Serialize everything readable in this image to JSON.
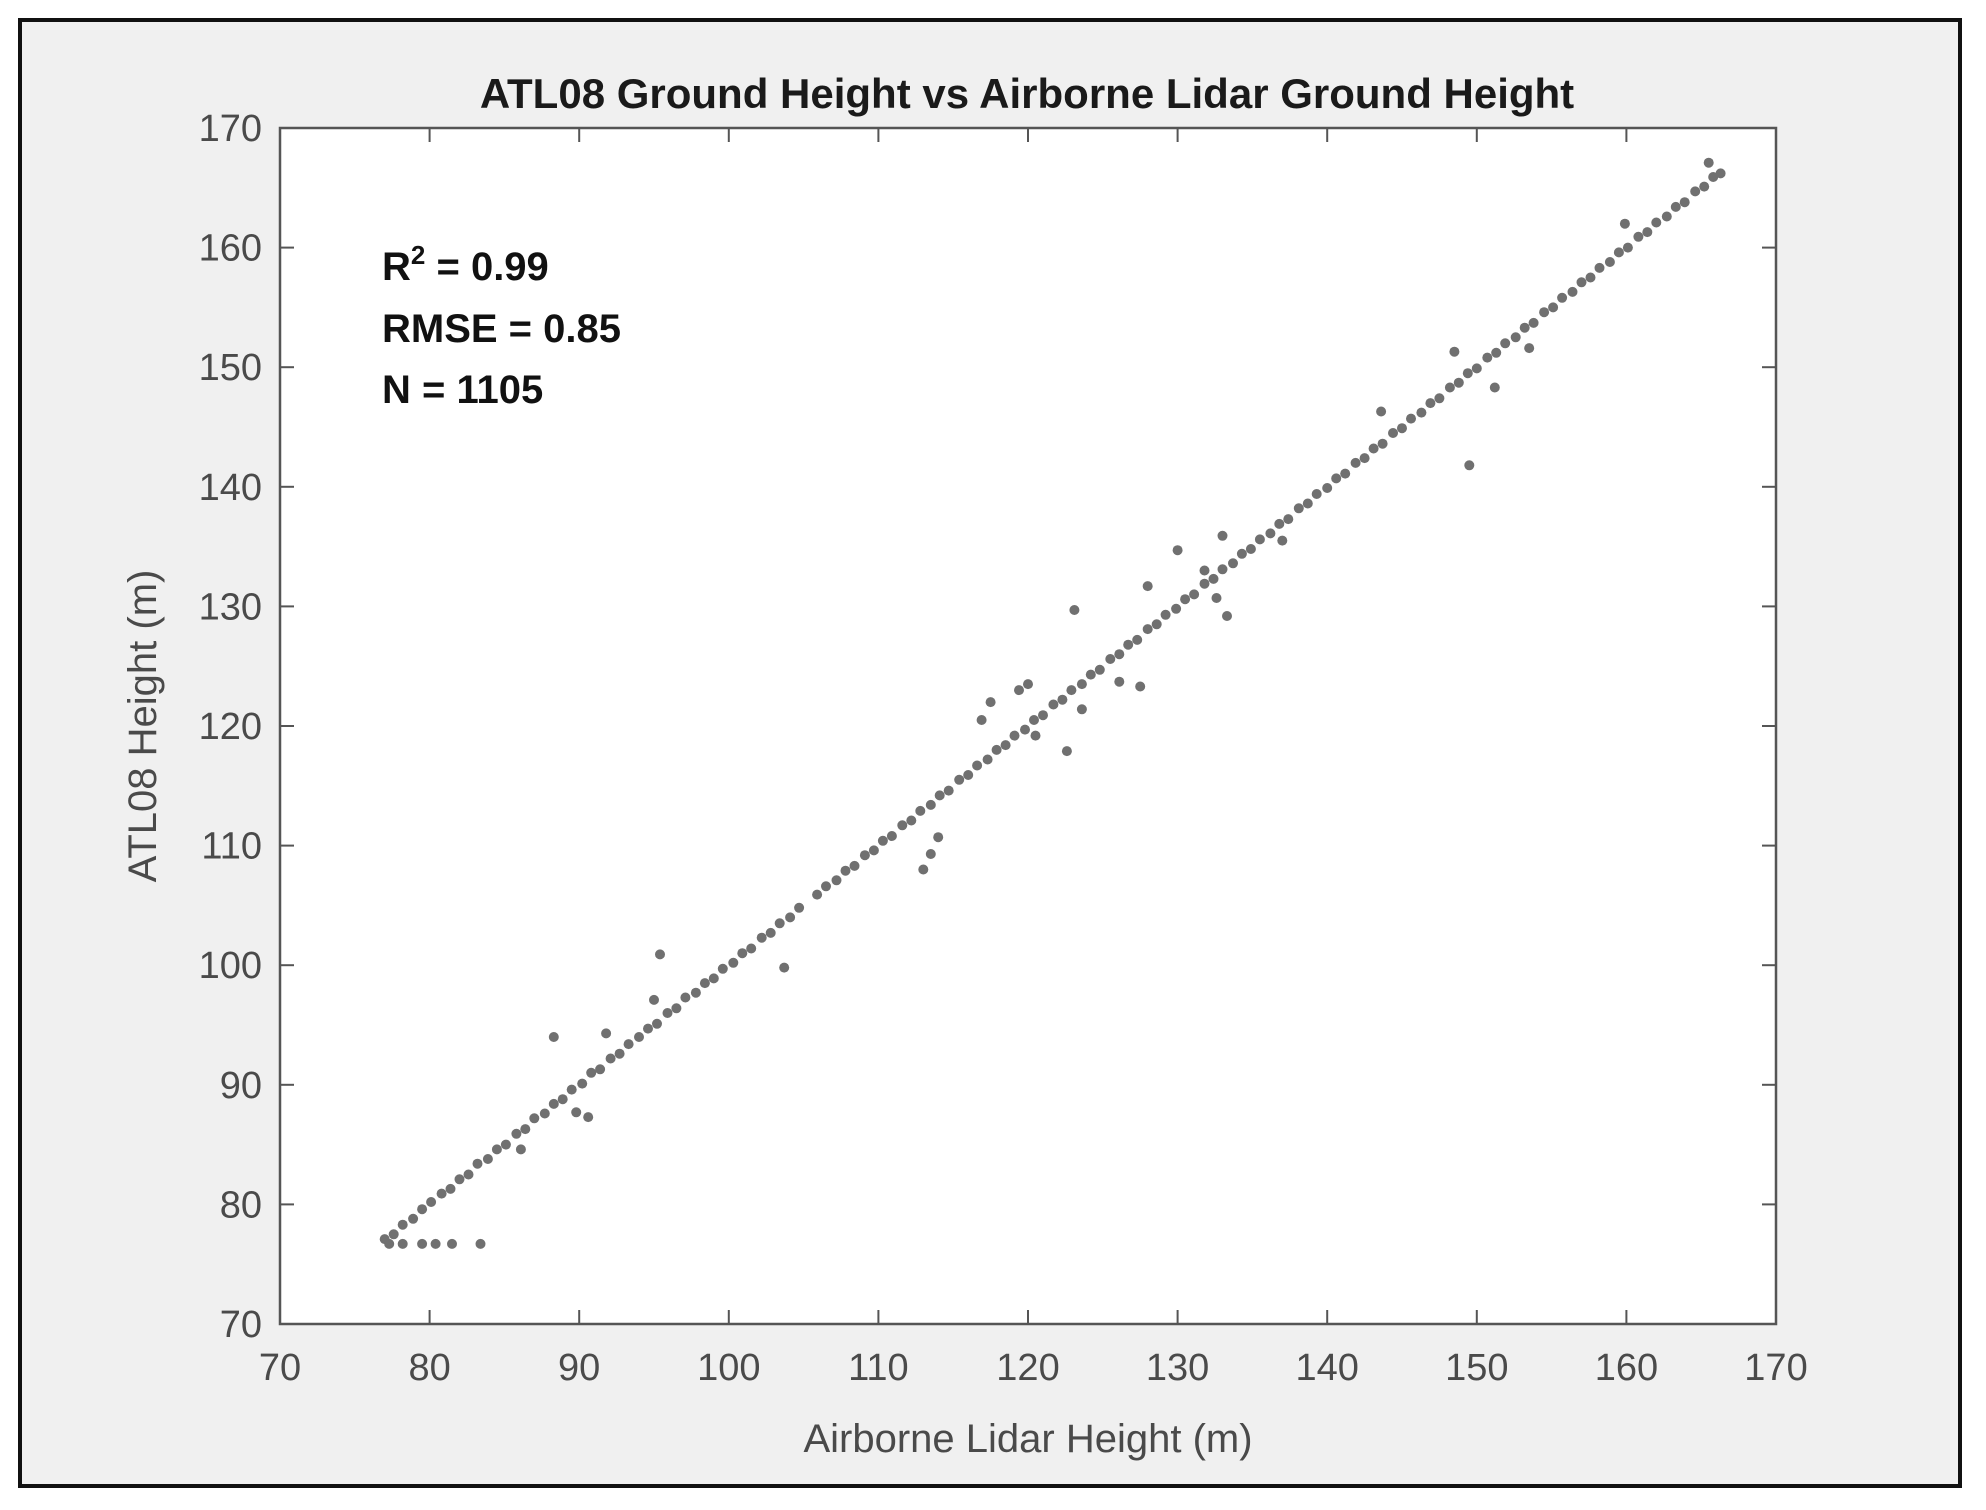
{
  "chart_data": {
    "type": "scatter",
    "title": "ATL08 Ground Height vs Airborne Lidar Ground Height",
    "xlabel": "Airborne Lidar Height (m)",
    "ylabel": "ATL08 Height (m)",
    "xlim": [
      70,
      170
    ],
    "ylim": [
      70,
      170
    ],
    "xticks": [
      "70",
      "80",
      "90",
      "100",
      "110",
      "120",
      "130",
      "140",
      "150",
      "160",
      "170"
    ],
    "yticks": [
      "70",
      "80",
      "90",
      "100",
      "110",
      "120",
      "130",
      "140",
      "150",
      "160",
      "170"
    ],
    "grid": false,
    "marker_color": "#707070",
    "stats": {
      "r2_prefix": "R",
      "r2_exp": "2",
      "r2_value": " = 0.99",
      "rmse": "RMSE = 0.85",
      "n": "N = 1105"
    },
    "points": [
      [
        77.0,
        77.1
      ],
      [
        77.6,
        77.5
      ],
      [
        78.2,
        78.3
      ],
      [
        78.9,
        78.8
      ],
      [
        79.5,
        79.6
      ],
      [
        80.1,
        80.2
      ],
      [
        80.8,
        80.9
      ],
      [
        81.4,
        81.3
      ],
      [
        82.0,
        82.1
      ],
      [
        82.6,
        82.5
      ],
      [
        83.2,
        83.4
      ],
      [
        83.9,
        83.8
      ],
      [
        84.5,
        84.6
      ],
      [
        85.1,
        85.0
      ],
      [
        85.8,
        85.9
      ],
      [
        86.4,
        86.3
      ],
      [
        87.0,
        87.2
      ],
      [
        87.7,
        87.6
      ],
      [
        88.3,
        88.4
      ],
      [
        88.9,
        88.8
      ],
      [
        89.5,
        89.6
      ],
      [
        90.2,
        90.1
      ],
      [
        90.8,
        91.0
      ],
      [
        91.4,
        91.3
      ],
      [
        92.1,
        92.2
      ],
      [
        92.7,
        92.6
      ],
      [
        93.3,
        93.4
      ],
      [
        94.0,
        94.0
      ],
      [
        94.6,
        94.7
      ],
      [
        95.2,
        95.1
      ],
      [
        95.9,
        96.0
      ],
      [
        96.5,
        96.4
      ],
      [
        97.1,
        97.3
      ],
      [
        97.8,
        97.7
      ],
      [
        98.4,
        98.5
      ],
      [
        99.0,
        98.9
      ],
      [
        99.6,
        99.7
      ],
      [
        100.3,
        100.2
      ],
      [
        100.9,
        101.0
      ],
      [
        101.5,
        101.4
      ],
      [
        102.2,
        102.3
      ],
      [
        102.8,
        102.7
      ],
      [
        103.4,
        103.5
      ],
      [
        104.1,
        104.0
      ],
      [
        104.7,
        104.8
      ],
      [
        105.9,
        105.9
      ],
      [
        106.5,
        106.6
      ],
      [
        107.2,
        107.1
      ],
      [
        107.8,
        107.9
      ],
      [
        108.4,
        108.3
      ],
      [
        109.1,
        109.2
      ],
      [
        109.7,
        109.6
      ],
      [
        110.3,
        110.4
      ],
      [
        110.9,
        110.8
      ],
      [
        111.6,
        111.7
      ],
      [
        112.2,
        112.1
      ],
      [
        112.8,
        112.9
      ],
      [
        113.5,
        113.4
      ],
      [
        114.1,
        114.2
      ],
      [
        114.7,
        114.6
      ],
      [
        115.4,
        115.5
      ],
      [
        116.0,
        115.9
      ],
      [
        116.6,
        116.7
      ],
      [
        117.3,
        117.2
      ],
      [
        117.9,
        118.0
      ],
      [
        118.5,
        118.4
      ],
      [
        119.1,
        119.2
      ],
      [
        119.8,
        119.7
      ],
      [
        120.4,
        120.5
      ],
      [
        121.0,
        120.9
      ],
      [
        121.7,
        121.8
      ],
      [
        122.3,
        122.2
      ],
      [
        122.9,
        123.0
      ],
      [
        123.6,
        123.5
      ],
      [
        124.2,
        124.3
      ],
      [
        124.8,
        124.7
      ],
      [
        125.5,
        125.6
      ],
      [
        126.1,
        126.0
      ],
      [
        126.7,
        126.8
      ],
      [
        127.3,
        127.2
      ],
      [
        128.0,
        128.1
      ],
      [
        128.6,
        128.5
      ],
      [
        129.2,
        129.3
      ],
      [
        129.9,
        129.8
      ],
      [
        130.5,
        130.6
      ],
      [
        131.1,
        131.0
      ],
      [
        131.8,
        131.9
      ],
      [
        132.4,
        132.3
      ],
      [
        133.0,
        133.1
      ],
      [
        133.7,
        133.6
      ],
      [
        134.3,
        134.4
      ],
      [
        134.9,
        134.8
      ],
      [
        135.5,
        135.6
      ],
      [
        136.2,
        136.1
      ],
      [
        136.8,
        136.9
      ],
      [
        137.4,
        137.3
      ],
      [
        138.1,
        138.2
      ],
      [
        138.7,
        138.6
      ],
      [
        139.3,
        139.4
      ],
      [
        140.0,
        139.9
      ],
      [
        140.6,
        140.7
      ],
      [
        141.2,
        141.1
      ],
      [
        141.9,
        142.0
      ],
      [
        142.5,
        142.4
      ],
      [
        143.1,
        143.2
      ],
      [
        143.7,
        143.6
      ],
      [
        144.4,
        144.5
      ],
      [
        145.0,
        144.9
      ],
      [
        145.6,
        145.7
      ],
      [
        146.3,
        146.2
      ],
      [
        146.9,
        147.0
      ],
      [
        147.5,
        147.4
      ],
      [
        148.2,
        148.3
      ],
      [
        148.8,
        148.7
      ],
      [
        149.4,
        149.5
      ],
      [
        150.0,
        149.9
      ],
      [
        150.7,
        150.8
      ],
      [
        151.3,
        151.2
      ],
      [
        151.9,
        152.0
      ],
      [
        152.6,
        152.5
      ],
      [
        153.2,
        153.3
      ],
      [
        153.8,
        153.7
      ],
      [
        154.5,
        154.6
      ],
      [
        155.1,
        155.0
      ],
      [
        155.7,
        155.8
      ],
      [
        156.4,
        156.3
      ],
      [
        157.0,
        157.1
      ],
      [
        157.6,
        157.5
      ],
      [
        158.2,
        158.3
      ],
      [
        158.9,
        158.8
      ],
      [
        159.5,
        159.6
      ],
      [
        160.1,
        160.0
      ],
      [
        160.8,
        160.9
      ],
      [
        161.4,
        161.3
      ],
      [
        162.0,
        162.1
      ],
      [
        162.7,
        162.6
      ],
      [
        163.3,
        163.4
      ],
      [
        163.9,
        163.8
      ],
      [
        164.6,
        164.7
      ],
      [
        165.2,
        165.1
      ],
      [
        165.8,
        165.9
      ],
      [
        166.3,
        166.2
      ],
      [
        77.3,
        76.7
      ],
      [
        78.2,
        76.7
      ],
      [
        79.5,
        76.7
      ],
      [
        80.4,
        76.7
      ],
      [
        81.5,
        76.7
      ],
      [
        83.4,
        76.7
      ],
      [
        88.3,
        94.0
      ],
      [
        95.4,
        100.9
      ],
      [
        103.7,
        99.8
      ],
      [
        89.8,
        87.7
      ],
      [
        90.6,
        87.3
      ],
      [
        86.1,
        84.6
      ],
      [
        91.8,
        94.3
      ],
      [
        95.0,
        97.1
      ],
      [
        113.0,
        108.0
      ],
      [
        113.5,
        109.3
      ],
      [
        114.0,
        110.7
      ],
      [
        116.9,
        120.5
      ],
      [
        117.5,
        122.0
      ],
      [
        120.0,
        123.5
      ],
      [
        119.4,
        123.0
      ],
      [
        122.6,
        117.9
      ],
      [
        120.5,
        119.2
      ],
      [
        123.1,
        129.7
      ],
      [
        123.6,
        121.4
      ],
      [
        127.5,
        123.3
      ],
      [
        126.1,
        123.7
      ],
      [
        128.0,
        131.7
      ],
      [
        130.0,
        134.7
      ],
      [
        133.3,
        129.2
      ],
      [
        132.6,
        130.7
      ],
      [
        131.8,
        133.0
      ],
      [
        143.6,
        146.3
      ],
      [
        149.5,
        141.8
      ],
      [
        148.5,
        151.3
      ],
      [
        151.2,
        148.3
      ],
      [
        153.5,
        151.6
      ],
      [
        159.9,
        162.0
      ],
      [
        165.5,
        167.1
      ],
      [
        137.0,
        135.5
      ],
      [
        133.0,
        135.9
      ]
    ]
  }
}
